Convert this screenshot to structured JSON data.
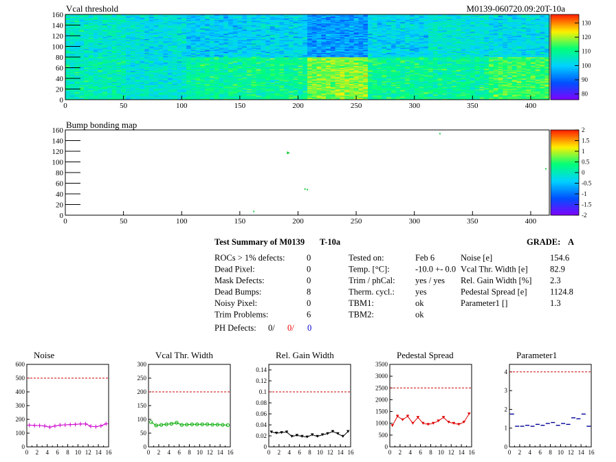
{
  "run_id": "M0139-060720.09:20T-10a",
  "vcal_map": {
    "title": "Vcal threshold",
    "xlim": [
      0,
      416
    ],
    "ylim": [
      0,
      160
    ],
    "x_ticks": [
      "0",
      "50",
      "100",
      "150",
      "200",
      "250",
      "300",
      "350",
      "400"
    ],
    "y_ticks": [
      "0",
      "20",
      "40",
      "60",
      "80",
      "100",
      "120",
      "140",
      "160"
    ],
    "palette_ticks": [
      "80",
      "90",
      "100",
      "110",
      "120",
      "130"
    ],
    "zlim": [
      76,
      136
    ],
    "module_layout": {
      "rocs_per_row": 8,
      "roc_cols": 52,
      "roc_rows": 80
    },
    "roc_mean_thresholds": [
      [
        107,
        104,
        109,
        110,
        118,
        110,
        109,
        114
      ],
      [
        105,
        103,
        100,
        101,
        95,
        101,
        104,
        102
      ]
    ],
    "colors": {
      "palette": [
        "#8000ff",
        "#0050ff",
        "#00d2ff",
        "#00ff78",
        "#fff000",
        "#ff1e00"
      ]
    }
  },
  "bump_map": {
    "title": "Bump bonding map",
    "xlim": [
      0,
      416
    ],
    "ylim": [
      0,
      160
    ],
    "x_ticks": [
      "0",
      "50",
      "100",
      "150",
      "200",
      "250",
      "300",
      "350",
      "400"
    ],
    "y_ticks": [
      "0",
      "20",
      "40",
      "60",
      "80",
      "100",
      "120",
      "140",
      "160"
    ],
    "palette_ticks": [
      "-2",
      "-1.5",
      "-1",
      "-0.5",
      "0",
      "0.5",
      "1",
      "1.5",
      "2"
    ],
    "dead_bumps": [
      [
        191,
        118
      ],
      [
        191,
        116
      ],
      [
        208,
        48
      ],
      [
        162,
        7
      ],
      [
        322,
        153
      ],
      [
        413,
        87
      ],
      [
        192,
        117
      ],
      [
        206,
        49
      ]
    ]
  },
  "summary": {
    "title": "Test Summary of M0139",
    "temp_label": "T-10a",
    "grade_label": "GRADE:",
    "grade": "A",
    "left": [
      {
        "label": "ROCs > 1% defects:",
        "value": "0"
      },
      {
        "label": "Dead Pixel:",
        "value": "0"
      },
      {
        "label": "Mask Defects:",
        "value": "0"
      },
      {
        "label": "Dead Bumps:",
        "value": "8"
      },
      {
        "label": "Noisy Pixel:",
        "value": "0"
      },
      {
        "label": "Trim Problems:",
        "value": "6"
      }
    ],
    "ph_defects": {
      "label": "PH Defects:",
      "v1": "0/",
      "v2": "0/",
      "v3": "0"
    },
    "middle": [
      {
        "label": "Tested on:",
        "value": "Feb 6"
      },
      {
        "label": "Temp. [°C]:",
        "value": "-10.0 +- 0.0"
      },
      {
        "label": "Trim / phCal:",
        "value": "yes / yes"
      },
      {
        "label": "Therm. cycl.:",
        "value": "yes"
      },
      {
        "label": "TBM1:",
        "value": "ok"
      },
      {
        "label": "TBM2:",
        "value": "ok"
      }
    ],
    "right": [
      {
        "label": "Noise [e]",
        "value": "154.6"
      },
      {
        "label": "Vcal Thr. Width [e]",
        "value": "82.9"
      },
      {
        "label": "Rel. Gain Width [%]",
        "value": "2.3"
      },
      {
        "label": "Pedestal Spread [e]",
        "value": "1124.8"
      },
      {
        "label": "Parameter1 []",
        "value": "1.3"
      }
    ]
  },
  "chart_data": [
    {
      "type": "line",
      "title": "Noise",
      "color": "#cc00cc",
      "marker": "plus",
      "xlim": [
        0,
        16
      ],
      "ylim": [
        0,
        600
      ],
      "limit": 500,
      "x_ticks": [
        "0",
        "2",
        "4",
        "6",
        "8",
        "10",
        "12",
        "14",
        "16"
      ],
      "y_ticks": [
        "0",
        "100",
        "200",
        "300",
        "400",
        "500",
        "600"
      ],
      "values": [
        158,
        156,
        155,
        152,
        144,
        152,
        158,
        160,
        162,
        164,
        166,
        167,
        150,
        147,
        153,
        168
      ]
    },
    {
      "type": "line",
      "title": "Vcal Thr. Width",
      "color": "#00aa00",
      "marker": "circle",
      "xlim": [
        0,
        16
      ],
      "ylim": [
        0,
        300
      ],
      "limit": 200,
      "x_ticks": [
        "0",
        "2",
        "4",
        "6",
        "8",
        "10",
        "12",
        "14",
        "16"
      ],
      "y_ticks": [
        "0",
        "50",
        "100",
        "150",
        "200",
        "250",
        "300"
      ],
      "values": [
        90,
        78,
        80,
        82,
        84,
        88,
        80,
        81,
        82,
        82,
        82,
        82,
        81,
        81,
        80,
        79
      ]
    },
    {
      "type": "line",
      "title": "Rel. Gain Width",
      "color": "#000000",
      "marker": "triangle",
      "xlim": [
        0,
        16
      ],
      "ylim": [
        0,
        0.15
      ],
      "limit": 0.1,
      "x_ticks": [
        "0",
        "2",
        "4",
        "6",
        "8",
        "10",
        "12",
        "14",
        "16"
      ],
      "y_ticks": [
        "0",
        "0.02",
        "0.04",
        "0.06",
        "0.08",
        "0.1",
        "0.12",
        "0.14"
      ],
      "values": [
        0.027,
        0.025,
        0.026,
        0.027,
        0.019,
        0.021,
        0.019,
        0.018,
        0.022,
        0.019,
        0.022,
        0.024,
        0.028,
        0.024,
        0.019,
        0.028
      ]
    },
    {
      "type": "line",
      "title": "Pedestal Spread",
      "color": "#dd0000",
      "marker": "triangle",
      "xlim": [
        0,
        16
      ],
      "ylim": [
        0,
        3500
      ],
      "limit": 2500,
      "x_ticks": [
        "0",
        "2",
        "4",
        "6",
        "8",
        "10",
        "12",
        "14",
        "16"
      ],
      "y_ticks": [
        "0",
        "500",
        "1000",
        "1500",
        "2000",
        "2500",
        "3000",
        "3500"
      ],
      "values": [
        900,
        1300,
        1150,
        1300,
        1000,
        1250,
        1000,
        950,
        1000,
        1100,
        1250,
        1050,
        1000,
        950,
        1050,
        1400
      ]
    },
    {
      "type": "scatter",
      "title": "Parameter1",
      "color": "#000099",
      "marker": "dash",
      "xlim": [
        0,
        16
      ],
      "ylim": [
        0,
        4.4
      ],
      "limit": 4,
      "x_ticks": [
        "0",
        "2",
        "4",
        "6",
        "8",
        "10",
        "12",
        "14",
        "16"
      ],
      "y_ticks": [
        "0",
        "1",
        "2",
        "3",
        "4"
      ],
      "values": [
        1.75,
        1.1,
        1.1,
        1.15,
        1.1,
        1.2,
        1.15,
        1.25,
        1.3,
        1.15,
        1.25,
        1.2,
        1.55,
        1.5,
        1.75,
        1.1
      ]
    }
  ]
}
